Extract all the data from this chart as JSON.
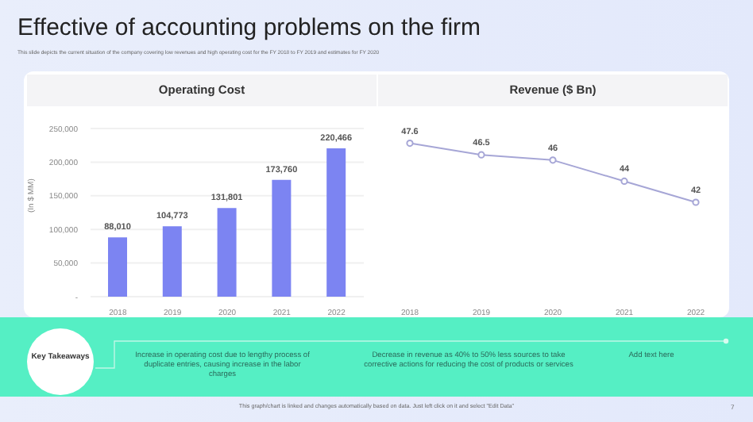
{
  "chart_data": [
    {
      "type": "bar",
      "title": "Operating Cost",
      "ylabel": "(In $ MM)",
      "categories": [
        "2018",
        "2019",
        "2020",
        "2021",
        "2022"
      ],
      "values": [
        88010,
        104773,
        131801,
        173760,
        220466
      ],
      "value_labels": [
        "88,010",
        "104,773",
        "131,801",
        "173,760",
        "220,466"
      ],
      "color": "#7c84f2",
      "ylim": [
        0,
        250000
      ],
      "yticks": [
        {
          "value": 0,
          "label": "-"
        },
        {
          "value": 50000,
          "label": "50,000"
        },
        {
          "value": 100000,
          "label": "100,000"
        },
        {
          "value": 150000,
          "label": "150,000"
        },
        {
          "value": 200000,
          "label": "200,000"
        },
        {
          "value": 250000,
          "label": "250,000"
        }
      ],
      "grid": "y"
    },
    {
      "type": "line",
      "title": "Revenue ($ Bn)",
      "categories": [
        "2018",
        "2019",
        "2020",
        "2021",
        "2022"
      ],
      "values": [
        47.6,
        46.5,
        46,
        44,
        42
      ],
      "color": "#a6a6d6",
      "marker": "circle",
      "data_labels": true
    },
    {
      "type": "other",
      "title": "Effective of accounting problems on the firm",
      "subtitle": "This slide depicts the current situation of the company covering low revenues and high operating cost for the FY 2018 to FY 2019 and estimates for FY 2020",
      "annotations": [
        "Key Takeaways",
        "Increase in operating cost due to lengthy process of duplicate entries, causing increase in the labor charges",
        "Decrease in revenue as 40% to 50% less sources to take corrective actions for reducing the cost of products or services",
        "Add text here",
        "This graph/chart is linked and changes automatically based on data. Just left click on it and select \"Edit Data\"",
        "7"
      ]
    }
  ]
}
